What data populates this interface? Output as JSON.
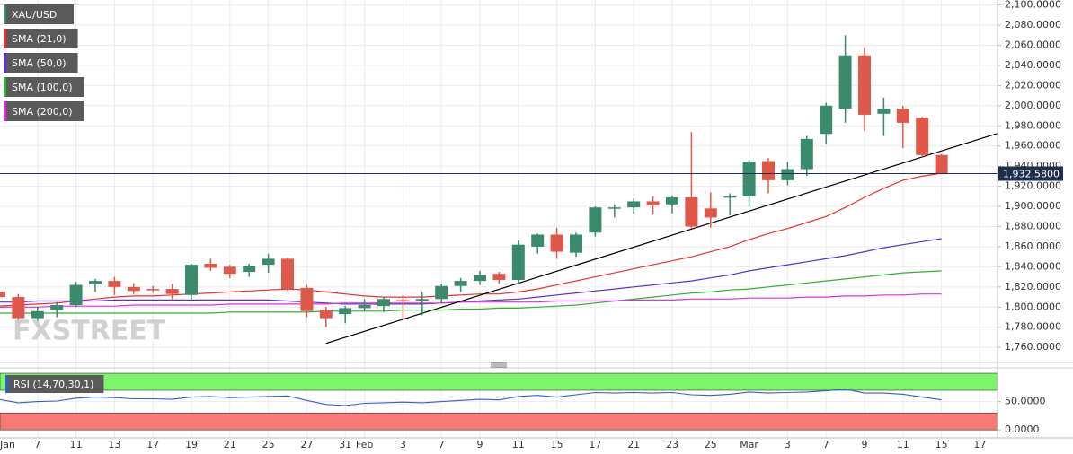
{
  "chart_data": {
    "type": "candlestick",
    "symbol": "XAU/USD",
    "watermark": "FXSTREET",
    "categories": [
      "Jan",
      null,
      "7",
      null,
      "11",
      null,
      "13",
      null,
      "17",
      null,
      "19",
      null,
      "21",
      null,
      "25",
      null,
      "27",
      null,
      "31",
      "Feb",
      null,
      "3",
      null,
      "7",
      null,
      "9",
      null,
      "11",
      null,
      "15",
      null,
      "17",
      null,
      "21",
      null,
      "23",
      null,
      "25",
      null,
      "Mar",
      null,
      "3",
      null,
      "7",
      null,
      "9",
      null,
      "11",
      null,
      "15",
      null,
      "17"
    ],
    "open": [
      1815,
      1810,
      1789,
      1797,
      1802,
      1823,
      1826,
      1820,
      1818,
      1818,
      1812,
      1843,
      1840,
      1835,
      1842,
      1848,
      1819,
      1797,
      1793,
      1799,
      1801,
      1807,
      1806,
      1808,
      1821,
      1826,
      1833,
      1827,
      1860,
      1872,
      1854,
      1874,
      1899,
      1899,
      1905,
      1902,
      1909,
      1898,
      1909,
      1910,
      1945,
      1926,
      1937,
      1972,
      1997,
      2050,
      1992,
      1997,
      1988,
      1951,
      null,
      null
    ],
    "high": [
      1830,
      1813,
      1800,
      1805,
      1825,
      1828,
      1830,
      1824,
      1821,
      1823,
      1843,
      1848,
      1842,
      1843,
      1853,
      1849,
      1822,
      1800,
      1801,
      1808,
      1810,
      1812,
      1815,
      1823,
      1829,
      1836,
      1835,
      1866,
      1873,
      1879,
      1874,
      1900,
      1902,
      1908,
      1910,
      1911,
      1974,
      1914,
      1913,
      1946,
      1948,
      1944,
      1970,
      2003,
      2070,
      2058,
      2008,
      2000,
      1989,
      1952,
      null,
      null
    ],
    "low": [
      1805,
      1784,
      1785,
      1790,
      1800,
      1815,
      1812,
      1813,
      1814,
      1808,
      1808,
      1836,
      1829,
      1830,
      1834,
      1816,
      1790,
      1780,
      1784,
      1796,
      1795,
      1788,
      1792,
      1804,
      1815,
      1822,
      1823,
      1823,
      1853,
      1848,
      1850,
      1870,
      1889,
      1893,
      1892,
      1893,
      1878,
      1879,
      1891,
      1900,
      1913,
      1921,
      1930,
      1962,
      1983,
      1975,
      1970,
      1958,
      1949,
      1932,
      null,
      null
    ],
    "close": [
      1810,
      1789,
      1796,
      1802,
      1822,
      1826,
      1820,
      1816,
      1817,
      1813,
      1842,
      1839,
      1833,
      1841,
      1848,
      1818,
      1796,
      1789,
      1799,
      1802,
      1808,
      1806,
      1808,
      1821,
      1826,
      1832,
      1827,
      1862,
      1872,
      1855,
      1872,
      1899,
      1899,
      1905,
      1901,
      1909,
      1880,
      1889,
      1910,
      1944,
      1926,
      1937,
      1967,
      2000,
      2050,
      1991,
      1997,
      1983,
      1951,
      1933,
      null,
      null
    ],
    "up_color": "#3a8a6c",
    "down_color": "#e0584a",
    "series": [
      {
        "name": "SMA (21,0)",
        "color": "#e8302a",
        "values": [
          1801,
          1802,
          1803,
          1804,
          1806,
          1808,
          1810,
          1811,
          1811,
          1812,
          1813,
          1814,
          1815,
          1816,
          1817,
          1818,
          1817,
          1815,
          1813,
          1811,
          1810,
          1810,
          1810,
          1811,
          1812,
          1813,
          1813,
          1815,
          1818,
          1822,
          1826,
          1830,
          1834,
          1838,
          1842,
          1846,
          1850,
          1855,
          1860,
          1867,
          1873,
          1878,
          1884,
          1890,
          1899,
          1909,
          1918,
          1926,
          1930,
          1933,
          null,
          null
        ]
      },
      {
        "name": "SMA (50,0)",
        "color": "#5b2ed6",
        "values": [
          1805,
          1805,
          1806,
          1806,
          1806,
          1806,
          1807,
          1807,
          1807,
          1807,
          1807,
          1807,
          1807,
          1807,
          1807,
          1806,
          1805,
          1804,
          1803,
          1803,
          1803,
          1803,
          1803,
          1804,
          1805,
          1806,
          1807,
          1808,
          1810,
          1812,
          1814,
          1816,
          1818,
          1820,
          1822,
          1824,
          1826,
          1829,
          1832,
          1836,
          1839,
          1842,
          1845,
          1848,
          1851,
          1855,
          1859,
          1862,
          1865,
          1868,
          null,
          null
        ]
      },
      {
        "name": "SMA (100,0)",
        "color": "#2bb52b",
        "values": [
          1794,
          1794,
          1794,
          1794,
          1794,
          1794,
          1794,
          1794,
          1794,
          1794,
          1794,
          1794,
          1795,
          1795,
          1795,
          1795,
          1795,
          1796,
          1796,
          1796,
          1796,
          1797,
          1797,
          1797,
          1798,
          1798,
          1799,
          1799,
          1800,
          1801,
          1802,
          1804,
          1806,
          1808,
          1810,
          1812,
          1814,
          1815,
          1817,
          1818,
          1820,
          1822,
          1824,
          1826,
          1828,
          1830,
          1832,
          1834,
          1835,
          1836,
          null,
          null
        ]
      },
      {
        "name": "SMA (200,0)",
        "color": "#e02ce0",
        "values": [
          1800,
          1800,
          1800,
          1801,
          1801,
          1801,
          1801,
          1802,
          1802,
          1802,
          1802,
          1802,
          1803,
          1803,
          1803,
          1803,
          1803,
          1803,
          1804,
          1804,
          1804,
          1804,
          1804,
          1804,
          1805,
          1805,
          1805,
          1805,
          1805,
          1806,
          1806,
          1806,
          1806,
          1807,
          1807,
          1807,
          1808,
          1808,
          1808,
          1809,
          1809,
          1809,
          1810,
          1810,
          1811,
          1811,
          1812,
          1812,
          1813,
          1813,
          null,
          null
        ]
      }
    ],
    "trendline": {
      "x": [
        17,
        52
      ],
      "values": [
        1764,
        1973
      ],
      "color": "#000000"
    },
    "last_price": {
      "value": 1932.58,
      "label": "1,932.5800",
      "color": "#1f2e4d"
    },
    "ylim": [
      1745,
      2105
    ],
    "yticks": [
      {
        "value": 1760,
        "label": "1,760.0000"
      },
      {
        "value": 1780,
        "label": "1,780.0000"
      },
      {
        "value": 1800,
        "label": "1,800.0000"
      },
      {
        "value": 1820,
        "label": "1,820.0000"
      },
      {
        "value": 1840,
        "label": "1,840.0000"
      },
      {
        "value": 1860,
        "label": "1,860.0000"
      },
      {
        "value": 1880,
        "label": "1,880.0000"
      },
      {
        "value": 1900,
        "label": "1,900.0000"
      },
      {
        "value": 1920,
        "label": "1,920.0000"
      },
      {
        "value": 1940,
        "label": "1,940.0000"
      },
      {
        "value": 1960,
        "label": "1,960.0000"
      },
      {
        "value": 1980,
        "label": "1,980.0000"
      },
      {
        "value": 2000,
        "label": "2,000.0000"
      },
      {
        "value": 2020,
        "label": "2,020.0000"
      },
      {
        "value": 2040,
        "label": "2,040.0000"
      },
      {
        "value": 2060,
        "label": "2,060.0000"
      },
      {
        "value": 2080,
        "label": "2,080.0000"
      },
      {
        "value": 2100,
        "label": "2,100.0000"
      }
    ],
    "grid": true,
    "rsi": {
      "name": "RSI (14,70,30,1)",
      "color": "#2f5fd6",
      "values": [
        54,
        48,
        50,
        51,
        56,
        58,
        57,
        55,
        55,
        54,
        58,
        59,
        57,
        58,
        59,
        60,
        52,
        45,
        43,
        47,
        48,
        49,
        48,
        50,
        52,
        54,
        53,
        59,
        61,
        58,
        62,
        66,
        65,
        66,
        65,
        66,
        62,
        61,
        63,
        67,
        65,
        66,
        67,
        69,
        72,
        65,
        65,
        63,
        58,
        53,
        null,
        null
      ],
      "ylim": [
        -14,
        108
      ],
      "yticks": [
        {
          "value": 50,
          "label": "50.0000"
        },
        {
          "value": 0,
          "label": "0.0000"
        }
      ],
      "zones": [
        {
          "from": 70,
          "to": 100,
          "color": "#7cf56b"
        },
        {
          "from": 0,
          "to": 30,
          "color": "#f77a76"
        }
      ]
    }
  }
}
